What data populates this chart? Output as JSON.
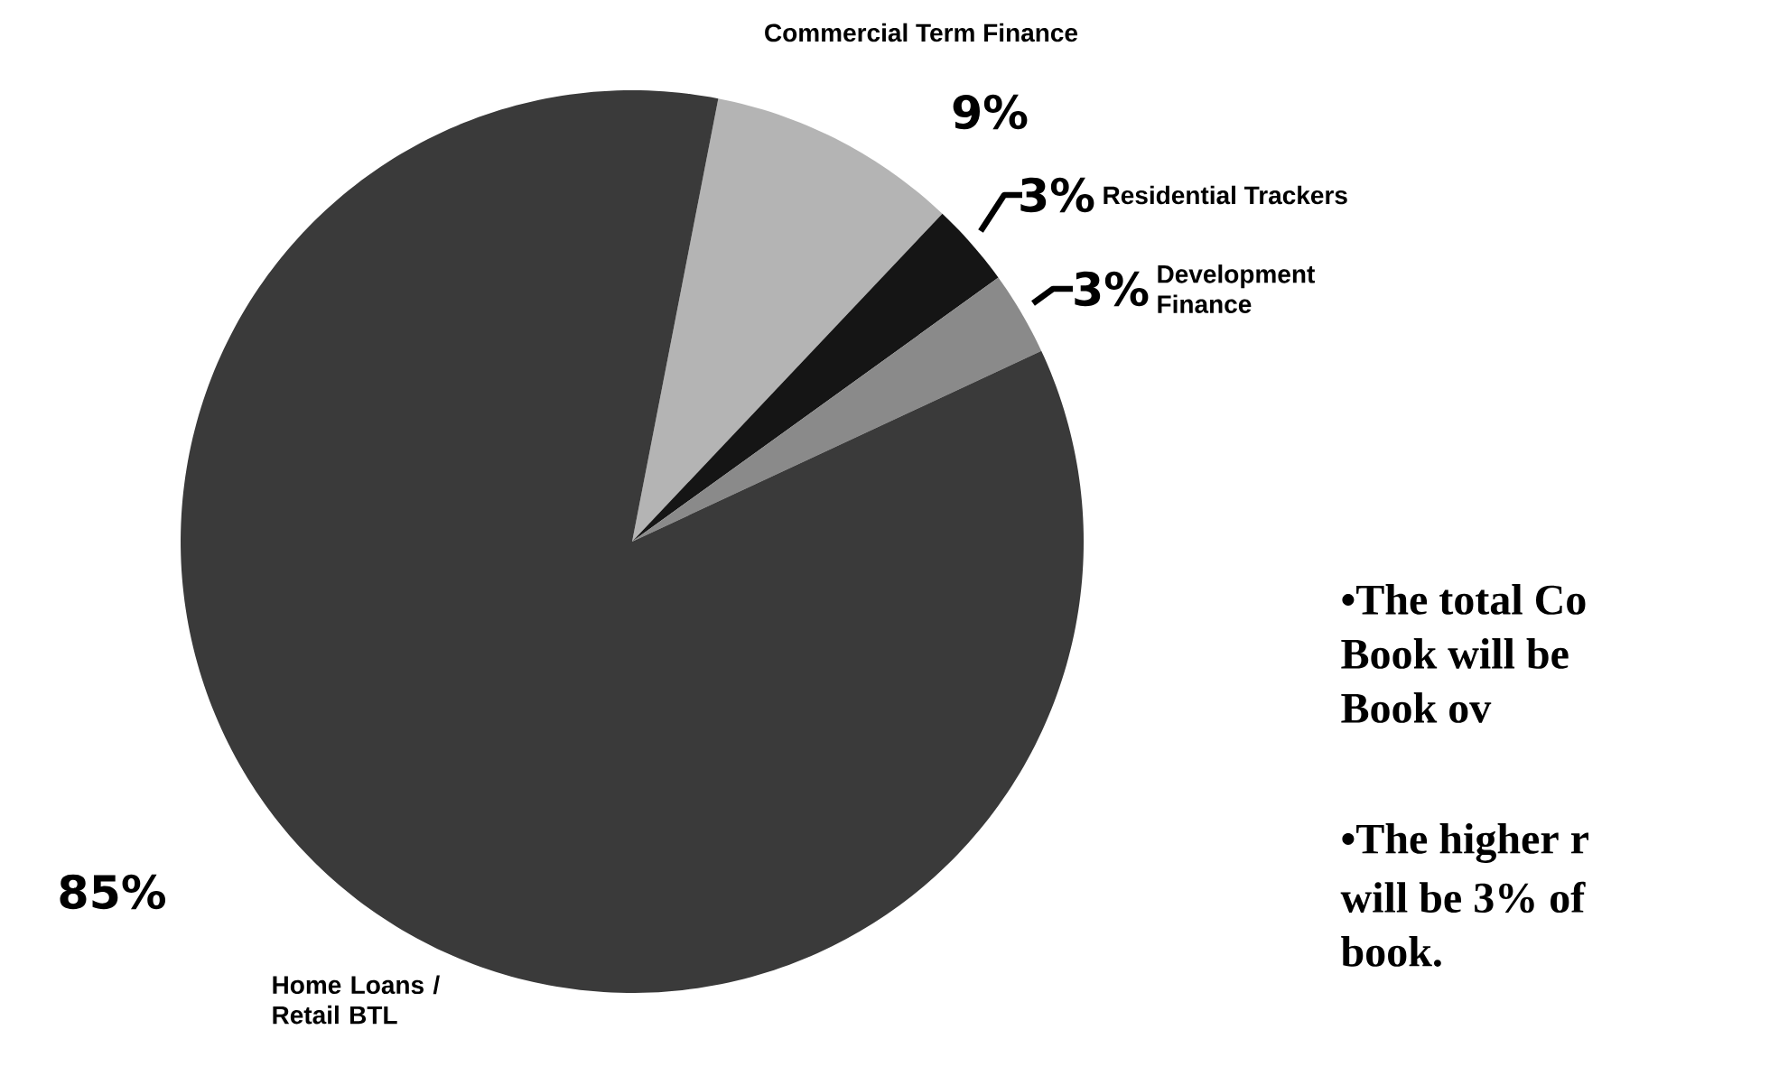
{
  "chart_data": {
    "type": "pie",
    "categories": [
      "Commercial Term Finance",
      "Residential Trackers",
      "Development Finance",
      "Home Loans / Retail BTL"
    ],
    "values": [
      9,
      3,
      3,
      85
    ],
    "value_labels": [
      "9%",
      "3%",
      "3%",
      "85%"
    ],
    "colors": [
      "#b4b4b4",
      "#151515",
      "#8a8a8a",
      "#3a3a3a"
    ],
    "annotations": [
      "•The total Co",
      "Book will be",
      "Book ov",
      "•The higher r",
      "will be 3% of",
      "book."
    ]
  }
}
